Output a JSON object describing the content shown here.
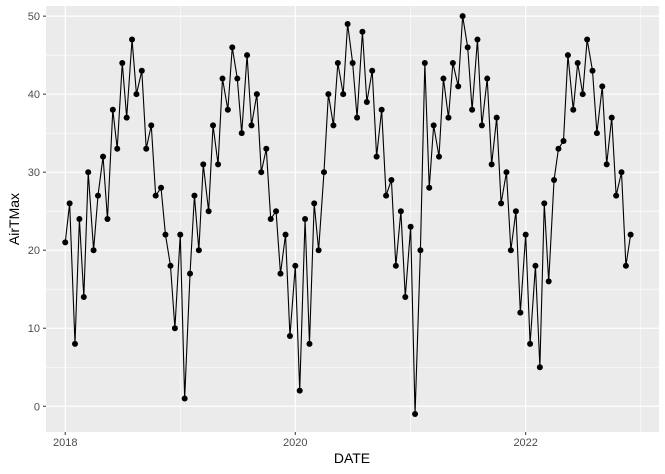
{
  "chart_data": {
    "type": "line",
    "title": "",
    "xlabel": "DATE",
    "ylabel": "AirTMax",
    "xlim": [
      "2017-11-01",
      "2023-02-28"
    ],
    "ylim": [
      -3.3,
      51.3
    ],
    "x_ticks": [
      "2018-01-01",
      "2020-01-01",
      "2022-01-01"
    ],
    "x_tick_labels": [
      "2018",
      "2020",
      "2022"
    ],
    "y_ticks": [
      0,
      10,
      20,
      30,
      40,
      50
    ],
    "y_tick_labels": [
      "0",
      "10",
      "20",
      "30",
      "40",
      "50"
    ],
    "grid": true,
    "legend": "none",
    "markers": true,
    "series": [
      {
        "x": [
          "2018-01-01",
          "2018-01-15",
          "2018-02-01",
          "2018-02-15",
          "2018-03-01",
          "2018-03-15",
          "2018-04-01",
          "2018-04-15",
          "2018-05-01",
          "2018-05-15",
          "2018-06-01",
          "2018-06-15",
          "2018-07-01",
          "2018-07-15",
          "2018-08-01",
          "2018-08-15",
          "2018-09-01",
          "2018-09-15",
          "2018-10-01",
          "2018-10-15",
          "2018-11-01",
          "2018-11-15",
          "2018-12-01",
          "2018-12-15",
          "2019-01-01",
          "2019-01-15",
          "2019-02-01",
          "2019-02-15",
          "2019-03-01",
          "2019-03-15",
          "2019-04-01",
          "2019-04-15",
          "2019-05-01",
          "2019-05-15",
          "2019-06-01",
          "2019-06-15",
          "2019-07-01",
          "2019-07-15",
          "2019-08-01",
          "2019-08-15",
          "2019-09-01",
          "2019-09-15",
          "2019-10-01",
          "2019-10-15",
          "2019-11-01",
          "2019-11-15",
          "2019-12-01",
          "2019-12-15",
          "2020-01-01",
          "2020-01-15",
          "2020-02-01",
          "2020-02-15",
          "2020-03-01",
          "2020-03-15",
          "2020-04-01",
          "2020-04-15",
          "2020-05-01",
          "2020-05-15",
          "2020-06-01",
          "2020-06-15",
          "2020-07-01",
          "2020-07-15",
          "2020-08-01",
          "2020-08-15",
          "2020-09-01",
          "2020-09-15",
          "2020-10-01",
          "2020-10-15",
          "2020-11-01",
          "2020-11-15",
          "2020-12-01",
          "2020-12-15",
          "2021-01-01",
          "2021-01-15",
          "2021-02-01",
          "2021-02-15",
          "2021-03-01",
          "2021-03-15",
          "2021-04-01",
          "2021-04-15",
          "2021-05-01",
          "2021-05-15",
          "2021-06-01",
          "2021-06-15",
          "2021-07-01",
          "2021-07-15",
          "2021-08-01",
          "2021-08-15",
          "2021-09-01",
          "2021-09-15",
          "2021-10-01",
          "2021-10-15",
          "2021-11-01",
          "2021-11-15",
          "2021-12-01",
          "2021-12-15",
          "2022-01-01",
          "2022-01-15",
          "2022-02-01",
          "2022-02-15",
          "2022-03-01",
          "2022-03-15",
          "2022-04-01",
          "2022-04-15",
          "2022-05-01",
          "2022-05-15",
          "2022-06-01",
          "2022-06-15",
          "2022-07-01",
          "2022-07-15",
          "2022-08-01",
          "2022-08-15",
          "2022-09-01",
          "2022-09-15",
          "2022-10-01",
          "2022-10-15",
          "2022-11-01",
          "2022-11-15",
          "2022-11-30"
        ],
        "y": [
          21,
          26,
          8,
          24,
          14,
          30,
          20,
          27,
          32,
          24,
          38,
          33,
          44,
          37,
          47,
          40,
          43,
          33,
          36,
          27,
          28,
          22,
          18,
          10,
          22,
          1,
          17,
          27,
          20,
          31,
          25,
          36,
          31,
          42,
          38,
          46,
          42,
          35,
          45,
          36,
          40,
          30,
          33,
          24,
          25,
          17,
          22,
          9,
          18,
          2,
          24,
          8,
          26,
          20,
          30,
          40,
          36,
          44,
          40,
          49,
          44,
          37,
          48,
          39,
          43,
          32,
          38,
          27,
          29,
          18,
          25,
          14,
          23,
          -1,
          20,
          44,
          28,
          36,
          32,
          42,
          37,
          44,
          41,
          50,
          46,
          38,
          47,
          36,
          42,
          31,
          37,
          26,
          30,
          20,
          25,
          12,
          22,
          8,
          18,
          5,
          26,
          16,
          29,
          33,
          34,
          45,
          38,
          44,
          40,
          47,
          43,
          35,
          41,
          31,
          37,
          27,
          30,
          18,
          22
        ]
      }
    ]
  }
}
